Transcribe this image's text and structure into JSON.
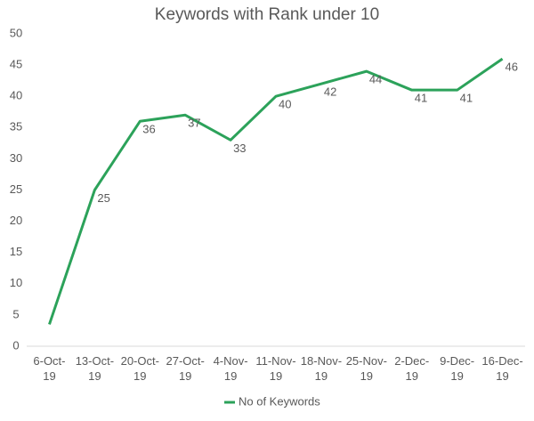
{
  "chart_data": {
    "type": "line",
    "title": "Keywords with Rank under 10",
    "categories": [
      "6-Oct-19",
      "13-Oct-19",
      "20-Oct-19",
      "27-Oct-19",
      "4-Nov-19",
      "11-Nov-19",
      "18-Nov-19",
      "25-Nov-19",
      "2-Dec-19",
      "9-Dec-19",
      "16-Dec-19"
    ],
    "series": [
      {
        "name": "No of Keywords",
        "color": "#2ca25a",
        "values": [
          3.5,
          25,
          36,
          37,
          33,
          40,
          42,
          44,
          41,
          41,
          46
        ],
        "value_labels": [
          null,
          "25",
          "36",
          "37",
          "33",
          "40",
          "42",
          "44",
          "41",
          "41",
          "46"
        ]
      }
    ],
    "ylim": [
      0,
      50
    ],
    "yticks": [
      0,
      5,
      10,
      15,
      20,
      25,
      30,
      35,
      40,
      45,
      50
    ],
    "grid": false,
    "legend": "bottom"
  }
}
